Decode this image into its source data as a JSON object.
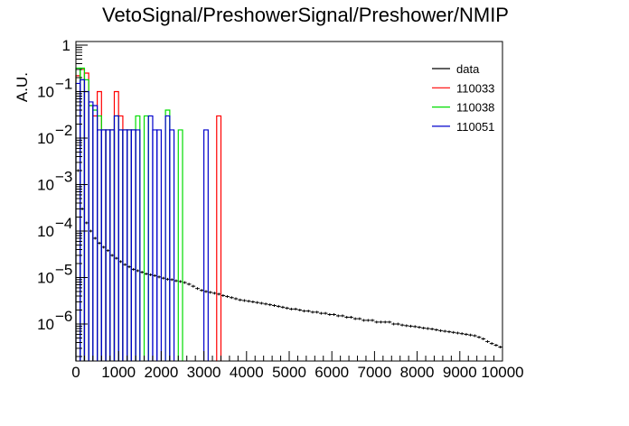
{
  "chart_data": {
    "type": "histogram",
    "title": "VetoSignal/PreshowerSignal/Preshower/NMIP",
    "xlabel": "",
    "ylabel": "A.U.",
    "xlim": [
      0,
      10000
    ],
    "ylim": [
      1.3e-07,
      1
    ],
    "yscale": "log",
    "grid": false,
    "legend_position": "top-right",
    "x_ticks": [
      "0",
      "1000",
      "2000",
      "3000",
      "4000",
      "5000",
      "6000",
      "7000",
      "8000",
      "9000",
      "10000"
    ],
    "y_ticks": [
      {
        "base": "1",
        "exp": ""
      },
      {
        "base": "10",
        "exp": "−1"
      },
      {
        "base": "10",
        "exp": "−2"
      },
      {
        "base": "10",
        "exp": "−3"
      },
      {
        "base": "10",
        "exp": "−4"
      },
      {
        "base": "10",
        "exp": "−5"
      },
      {
        "base": "10",
        "exp": "−6"
      }
    ],
    "series": [
      {
        "name": "data",
        "kind": "points",
        "color": "#000000",
        "bin_width": 100,
        "points": [
          [
            50,
            0.002
          ],
          [
            150,
            0.0003
          ],
          [
            250,
            0.00015
          ],
          [
            350,
            0.0001
          ],
          [
            450,
            7e-05
          ],
          [
            550,
            5.5e-05
          ],
          [
            650,
            4.5e-05
          ],
          [
            750,
            3.8e-05
          ],
          [
            850,
            3e-05
          ],
          [
            950,
            2.6e-05
          ],
          [
            1050,
            2.2e-05
          ],
          [
            1150,
            1.9e-05
          ],
          [
            1250,
            1.7e-05
          ],
          [
            1350,
            1.5e-05
          ],
          [
            1450,
            1.4e-05
          ],
          [
            1550,
            1.3e-05
          ],
          [
            1650,
            1.2e-05
          ],
          [
            1750,
            1.15e-05
          ],
          [
            1850,
            1.1e-05
          ],
          [
            1950,
            1.03e-05
          ],
          [
            2050,
            9.7e-06
          ],
          [
            2150,
            9.2e-06
          ],
          [
            2250,
            9e-06
          ],
          [
            2350,
            8.5e-06
          ],
          [
            2450,
            8.2e-06
          ],
          [
            2550,
            7.8e-06
          ],
          [
            2650,
            7.2e-06
          ],
          [
            2750,
            6.5e-06
          ],
          [
            2850,
            5.8e-06
          ],
          [
            2950,
            5.3e-06
          ],
          [
            3050,
            5e-06
          ],
          [
            3150,
            4.8e-06
          ],
          [
            3250,
            4.6e-06
          ],
          [
            3350,
            4.4e-06
          ],
          [
            3450,
            4.1e-06
          ],
          [
            3550,
            3.9e-06
          ],
          [
            3650,
            3.7e-06
          ],
          [
            3750,
            3.5e-06
          ],
          [
            3850,
            3.3e-06
          ],
          [
            3950,
            3.2e-06
          ],
          [
            4050,
            3.1e-06
          ],
          [
            4150,
            3e-06
          ],
          [
            4250,
            2.9e-06
          ],
          [
            4350,
            2.8e-06
          ],
          [
            4450,
            2.7e-06
          ],
          [
            4550,
            2.6e-06
          ],
          [
            4650,
            2.5e-06
          ],
          [
            4750,
            2.4e-06
          ],
          [
            4850,
            2.3e-06
          ],
          [
            4950,
            2.2e-06
          ],
          [
            5050,
            2.1e-06
          ],
          [
            5150,
            2.1e-06
          ],
          [
            5250,
            2e-06
          ],
          [
            5350,
            1.9e-06
          ],
          [
            5450,
            1.9e-06
          ],
          [
            5550,
            1.8e-06
          ],
          [
            5650,
            1.8e-06
          ],
          [
            5750,
            1.7e-06
          ],
          [
            5850,
            1.7e-06
          ],
          [
            5950,
            1.6e-06
          ],
          [
            6050,
            1.6e-06
          ],
          [
            6150,
            1.5e-06
          ],
          [
            6250,
            1.5e-06
          ],
          [
            6350,
            1.4e-06
          ],
          [
            6450,
            1.4e-06
          ],
          [
            6550,
            1.3e-06
          ],
          [
            6650,
            1.3e-06
          ],
          [
            6750,
            1.2e-06
          ],
          [
            6850,
            1.2e-06
          ],
          [
            6950,
            1.2e-06
          ],
          [
            7050,
            1.1e-06
          ],
          [
            7150,
            1.1e-06
          ],
          [
            7250,
            1.1e-06
          ],
          [
            7350,
            1.1e-06
          ],
          [
            7450,
            1e-06
          ],
          [
            7550,
            1e-06
          ],
          [
            7650,
            9.5e-07
          ],
          [
            7750,
            9.2e-07
          ],
          [
            7850,
            9e-07
          ],
          [
            7950,
            8.8e-07
          ],
          [
            8050,
            8.5e-07
          ],
          [
            8150,
            8.2e-07
          ],
          [
            8250,
            8e-07
          ],
          [
            8350,
            7.8e-07
          ],
          [
            8450,
            7.5e-07
          ],
          [
            8550,
            7.2e-07
          ],
          [
            8650,
            7e-07
          ],
          [
            8750,
            6.8e-07
          ],
          [
            8850,
            6.6e-07
          ],
          [
            8950,
            6.4e-07
          ],
          [
            9050,
            6.2e-07
          ],
          [
            9150,
            6e-07
          ],
          [
            9250,
            5.8e-07
          ],
          [
            9350,
            5.6e-07
          ],
          [
            9450,
            5.2e-07
          ],
          [
            9550,
            4.8e-07
          ],
          [
            9650,
            4.2e-07
          ],
          [
            9750,
            3.8e-07
          ],
          [
            9850,
            3.5e-07
          ],
          [
            9950,
            3.2e-07
          ]
        ]
      },
      {
        "name": "110033",
        "kind": "histogram",
        "color": "#ff0000",
        "bins": [
          [
            0,
            100,
            0.22
          ],
          [
            100,
            200,
            0.3
          ],
          [
            200,
            300,
            0.25
          ],
          [
            300,
            400,
            0.05
          ],
          [
            400,
            500,
            0.03
          ],
          [
            500,
            600,
            0.1
          ],
          [
            600,
            700,
            0.015
          ],
          [
            700,
            800,
            0.015
          ],
          [
            800,
            900,
            0.015
          ],
          [
            900,
            1000,
            0.1
          ],
          [
            1000,
            1100,
            0.03
          ],
          [
            1100,
            1200,
            0.015
          ],
          [
            1200,
            1300,
            0.015
          ],
          [
            1300,
            1400,
            0.015
          ],
          [
            3300,
            3400,
            0.03
          ]
        ]
      },
      {
        "name": "110038",
        "kind": "histogram",
        "color": "#00dd00",
        "bins": [
          [
            0,
            100,
            0.32
          ],
          [
            100,
            200,
            0.32
          ],
          [
            200,
            300,
            0.18
          ],
          [
            300,
            400,
            0.05
          ],
          [
            400,
            500,
            0.04
          ],
          [
            500,
            600,
            0.03
          ],
          [
            600,
            700,
            0.015
          ],
          [
            700,
            800,
            0.015
          ],
          [
            800,
            900,
            0.015
          ],
          [
            900,
            1000,
            0.03
          ],
          [
            1000,
            1100,
            0.015
          ],
          [
            1100,
            1200,
            0.015
          ],
          [
            1200,
            1300,
            0.015
          ],
          [
            1300,
            1400,
            0.015
          ],
          [
            1400,
            1500,
            0.03
          ],
          [
            1600,
            1700,
            0.03
          ],
          [
            2100,
            2200,
            0.04
          ],
          [
            2400,
            2500,
            0.015
          ]
        ]
      },
      {
        "name": "110051",
        "kind": "histogram",
        "color": "#0000cc",
        "bins": [
          [
            0,
            100,
            0.15
          ],
          [
            100,
            200,
            0.18
          ],
          [
            200,
            300,
            0.1
          ],
          [
            300,
            400,
            0.06
          ],
          [
            400,
            500,
            0.05
          ],
          [
            500,
            600,
            0.015
          ],
          [
            600,
            700,
            0.015
          ],
          [
            700,
            800,
            0.015
          ],
          [
            800,
            900,
            0.015
          ],
          [
            900,
            1000,
            0.03
          ],
          [
            1000,
            1100,
            0.015
          ],
          [
            1100,
            1200,
            0.015
          ],
          [
            1200,
            1300,
            0.015
          ],
          [
            1300,
            1400,
            0.015
          ],
          [
            1400,
            1500,
            0.015
          ],
          [
            1700,
            1800,
            0.03
          ],
          [
            1800,
            1900,
            0.015
          ],
          [
            1900,
            2000,
            0.015
          ],
          [
            2100,
            2200,
            0.03
          ],
          [
            2200,
            2300,
            0.015
          ],
          [
            3000,
            3100,
            0.015
          ]
        ]
      }
    ]
  }
}
